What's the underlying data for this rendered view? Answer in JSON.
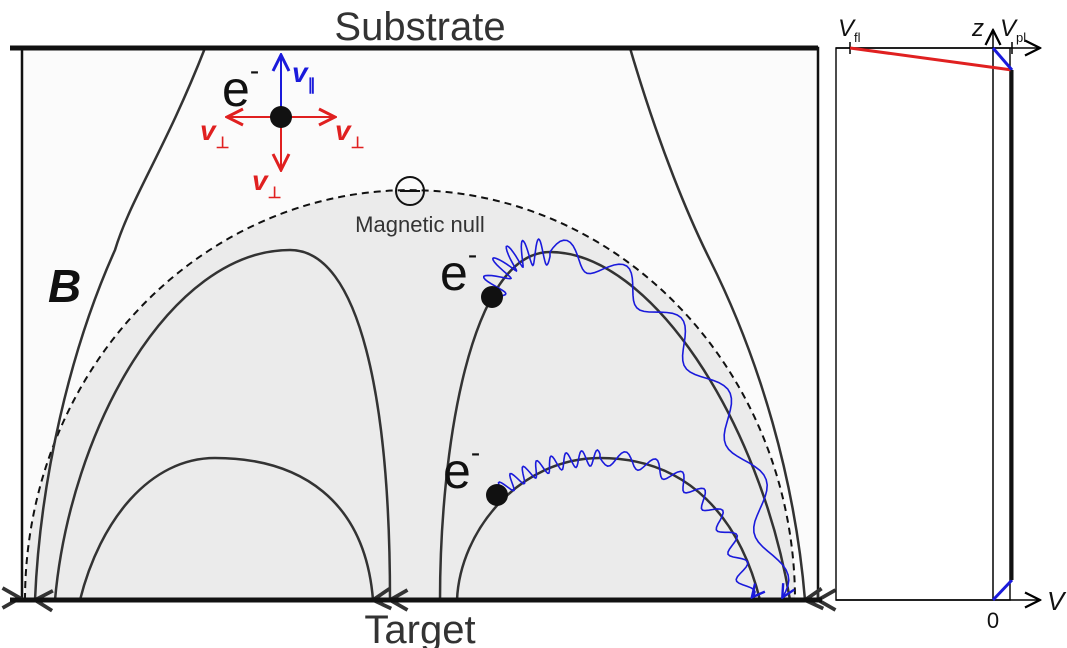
{
  "labels": {
    "top": "Substrate",
    "bottom": "Target",
    "field": "B",
    "null": "Magnetic null"
  },
  "electrons": [
    {
      "symbol": "e",
      "charge": "-"
    },
    {
      "symbol": "e",
      "charge": "-"
    },
    {
      "symbol": "e",
      "charge": "-"
    }
  ],
  "velocity": [
    {
      "symbol": "v",
      "subscript": "∥"
    },
    {
      "symbol": "v",
      "subscript": "⊥"
    },
    {
      "symbol": "v",
      "subscript": "⊥"
    },
    {
      "symbol": "v",
      "subscript": "⊥"
    }
  ],
  "potential_plot": {
    "v_floating": {
      "symbol": "V",
      "subscript": "fl"
    },
    "z_axis": "z",
    "v_plasma": {
      "symbol": "V",
      "subscript": "pl"
    },
    "origin": "0",
    "x_axis": "V"
  }
}
